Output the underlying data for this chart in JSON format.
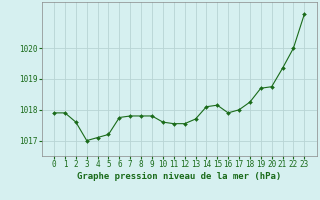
{
  "x": [
    0,
    1,
    2,
    3,
    4,
    5,
    6,
    7,
    8,
    9,
    10,
    11,
    12,
    13,
    14,
    15,
    16,
    17,
    18,
    19,
    20,
    21,
    22,
    23
  ],
  "y": [
    1017.9,
    1017.9,
    1017.6,
    1017.0,
    1017.1,
    1017.2,
    1017.75,
    1017.8,
    1017.8,
    1017.8,
    1017.6,
    1017.55,
    1017.55,
    1017.7,
    1018.1,
    1018.15,
    1017.9,
    1018.0,
    1018.25,
    1018.7,
    1018.75,
    1019.35,
    1020.0,
    1021.1
  ],
  "line_color": "#1a6b1a",
  "marker": "D",
  "marker_size": 2.0,
  "line_width": 0.8,
  "bg_color": "#d6f0f0",
  "grid_color": "#b8d4d4",
  "xlabel": "Graphe pression niveau de la mer (hPa)",
  "xlabel_color": "#1a6b1a",
  "xlabel_fontsize": 6.5,
  "tick_color": "#1a6b1a",
  "tick_fontsize": 5.5,
  "ylim": [
    1016.5,
    1021.5
  ],
  "yticks": [
    1017,
    1018,
    1019,
    1020
  ],
  "xticks": [
    0,
    1,
    2,
    3,
    4,
    5,
    6,
    7,
    8,
    9,
    10,
    11,
    12,
    13,
    14,
    15,
    16,
    17,
    18,
    19,
    20,
    21,
    22,
    23
  ]
}
